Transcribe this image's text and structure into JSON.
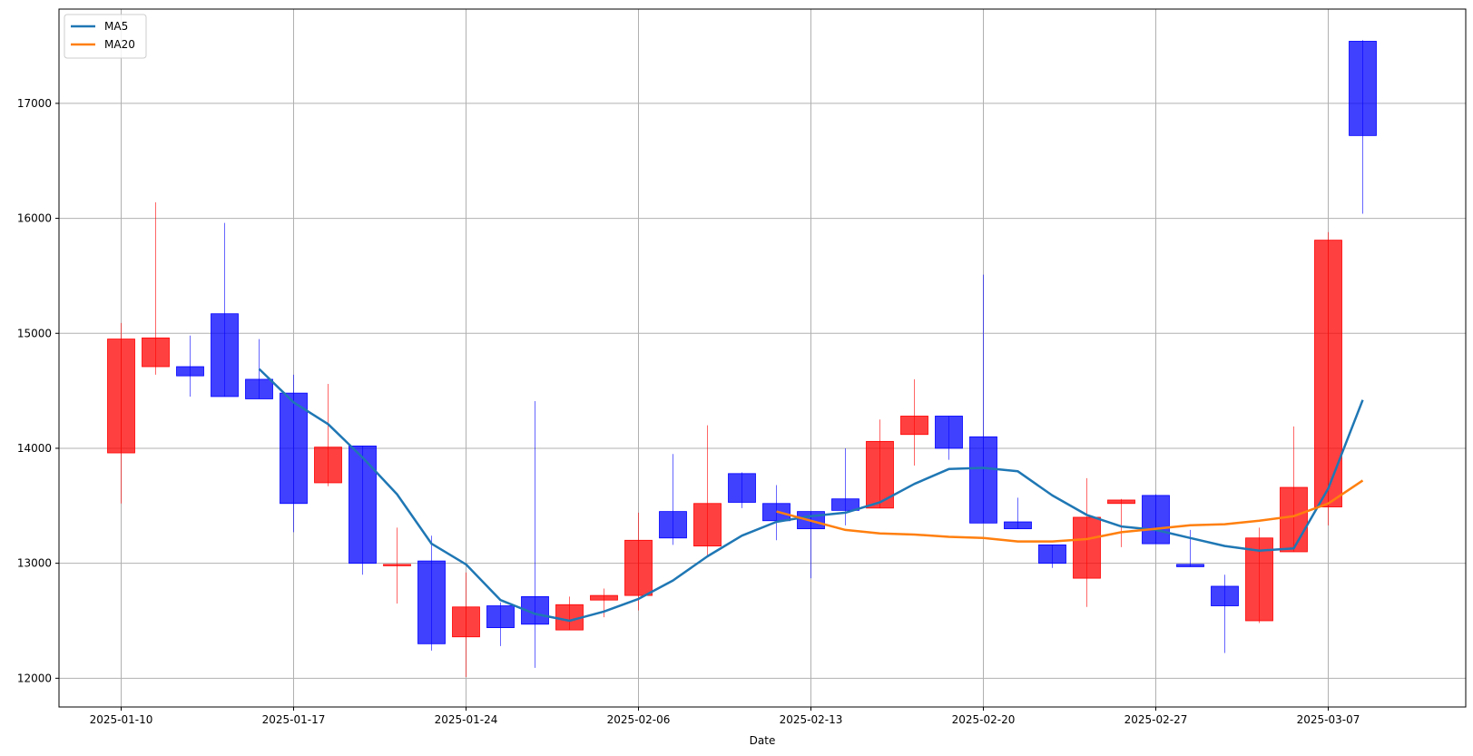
{
  "chart_data": {
    "type": "candlestick",
    "title": "",
    "xlabel": "Date",
    "ylabel": "",
    "ylim": [
      11750,
      17820
    ],
    "yticks": [
      12000,
      13000,
      14000,
      15000,
      16000,
      17000
    ],
    "xtick_labels": [
      {
        "index": 0,
        "label": "2025-01-10"
      },
      {
        "index": 5,
        "label": "2025-01-17"
      },
      {
        "index": 10,
        "label": "2025-01-24"
      },
      {
        "index": 15,
        "label": "2025-02-06"
      },
      {
        "index": 20,
        "label": "2025-02-13"
      },
      {
        "index": 25,
        "label": "2025-02-20"
      },
      {
        "index": 30,
        "label": "2025-02-27"
      },
      {
        "index": 35,
        "label": "2025-03-07"
      }
    ],
    "grid": true,
    "legend_placement": "upper left",
    "colors": {
      "up": "#ff0000",
      "down": "#0000ff",
      "ma5": "#1f77b4",
      "ma20": "#ff7f0e"
    },
    "candles": [
      {
        "open": 13960,
        "close": 14950,
        "high": 15090,
        "low": 13520
      },
      {
        "open": 14710,
        "close": 14960,
        "high": 16140,
        "low": 14640
      },
      {
        "open": 14710,
        "close": 14630,
        "high": 14980,
        "low": 14450
      },
      {
        "open": 15170,
        "close": 14450,
        "high": 15960,
        "low": 14450
      },
      {
        "open": 14600,
        "close": 14430,
        "high": 14950,
        "low": 14430
      },
      {
        "open": 14480,
        "close": 13520,
        "high": 14640,
        "low": 13270
      },
      {
        "open": 13700,
        "close": 14010,
        "high": 14560,
        "low": 13670
      },
      {
        "open": 14020,
        "close": 13000,
        "high": 14020,
        "low": 12900
      },
      {
        "open": 12990,
        "close": 12990,
        "high": 13310,
        "low": 12650
      },
      {
        "open": 13020,
        "close": 12300,
        "high": 13240,
        "low": 12240
      },
      {
        "open": 12360,
        "close": 12620,
        "high": 12920,
        "low": 12010
      },
      {
        "open": 12630,
        "close": 12440,
        "high": 12660,
        "low": 12280
      },
      {
        "open": 12710,
        "close": 12470,
        "high": 14410,
        "low": 12090
      },
      {
        "open": 12420,
        "close": 12640,
        "high": 12710,
        "low": 12420
      },
      {
        "open": 12680,
        "close": 12720,
        "high": 12780,
        "low": 12530
      },
      {
        "open": 12720,
        "close": 13200,
        "high": 13440,
        "low": 12590
      },
      {
        "open": 13450,
        "close": 13220,
        "high": 13950,
        "low": 13160
      },
      {
        "open": 13150,
        "close": 13520,
        "high": 14200,
        "low": 13060
      },
      {
        "open": 13780,
        "close": 13530,
        "high": 13790,
        "low": 13480
      },
      {
        "open": 13520,
        "close": 13370,
        "high": 13680,
        "low": 13200
      },
      {
        "open": 13450,
        "close": 13300,
        "high": 13450,
        "low": 12870
      },
      {
        "open": 13560,
        "close": 13460,
        "high": 14000,
        "low": 13330
      },
      {
        "open": 13480,
        "close": 14060,
        "high": 14250,
        "low": 13480
      },
      {
        "open": 14120,
        "close": 14280,
        "high": 14600,
        "low": 13850
      },
      {
        "open": 14280,
        "close": 14000,
        "high": 14280,
        "low": 13900
      },
      {
        "open": 14100,
        "close": 13350,
        "high": 15510,
        "low": 13350
      },
      {
        "open": 13360,
        "close": 13300,
        "high": 13570,
        "low": 13300
      },
      {
        "open": 13160,
        "close": 13000,
        "high": 13160,
        "low": 12960
      },
      {
        "open": 12870,
        "close": 13400,
        "high": 13740,
        "low": 12620
      },
      {
        "open": 13520,
        "close": 13550,
        "high": 13560,
        "low": 13140
      },
      {
        "open": 13590,
        "close": 13170,
        "high": 13600,
        "low": 13170
      },
      {
        "open": 12990,
        "close": 12970,
        "high": 13290,
        "low": 12970
      },
      {
        "open": 12800,
        "close": 12630,
        "high": 12900,
        "low": 12220
      },
      {
        "open": 12500,
        "close": 13220,
        "high": 13310,
        "low": 12480
      },
      {
        "open": 13100,
        "close": 13660,
        "high": 14190,
        "low": 13100
      },
      {
        "open": 13490,
        "close": 15810,
        "high": 15880,
        "low": 13330
      },
      {
        "open": 17540,
        "close": 16720,
        "high": 17550,
        "low": 16040
      }
    ],
    "series": [
      {
        "name": "MA5",
        "points": [
          [
            4,
            14690
          ],
          [
            5,
            14400
          ],
          [
            6,
            14210
          ],
          [
            7,
            13920
          ],
          [
            8,
            13600
          ],
          [
            9,
            13170
          ],
          [
            10,
            12990
          ],
          [
            11,
            12680
          ],
          [
            12,
            12560
          ],
          [
            13,
            12500
          ],
          [
            14,
            12580
          ],
          [
            15,
            12690
          ],
          [
            16,
            12850
          ],
          [
            17,
            13060
          ],
          [
            18,
            13240
          ],
          [
            19,
            13360
          ],
          [
            20,
            13410
          ],
          [
            21,
            13440
          ],
          [
            22,
            13530
          ],
          [
            23,
            13690
          ],
          [
            24,
            13820
          ],
          [
            25,
            13830
          ],
          [
            26,
            13800
          ],
          [
            27,
            13590
          ],
          [
            28,
            13420
          ],
          [
            29,
            13320
          ],
          [
            30,
            13290
          ],
          [
            31,
            13220
          ],
          [
            32,
            13150
          ],
          [
            33,
            13110
          ],
          [
            34,
            13130
          ],
          [
            35,
            13650
          ],
          [
            36,
            14420
          ]
        ]
      },
      {
        "name": "MA20",
        "points": [
          [
            19,
            13450
          ],
          [
            20,
            13370
          ],
          [
            21,
            13290
          ],
          [
            22,
            13260
          ],
          [
            23,
            13250
          ],
          [
            24,
            13230
          ],
          [
            25,
            13220
          ],
          [
            26,
            13190
          ],
          [
            27,
            13190
          ],
          [
            28,
            13210
          ],
          [
            29,
            13270
          ],
          [
            30,
            13300
          ],
          [
            31,
            13330
          ],
          [
            32,
            13340
          ],
          [
            33,
            13370
          ],
          [
            34,
            13410
          ],
          [
            35,
            13520
          ],
          [
            36,
            13720
          ]
        ]
      }
    ]
  }
}
